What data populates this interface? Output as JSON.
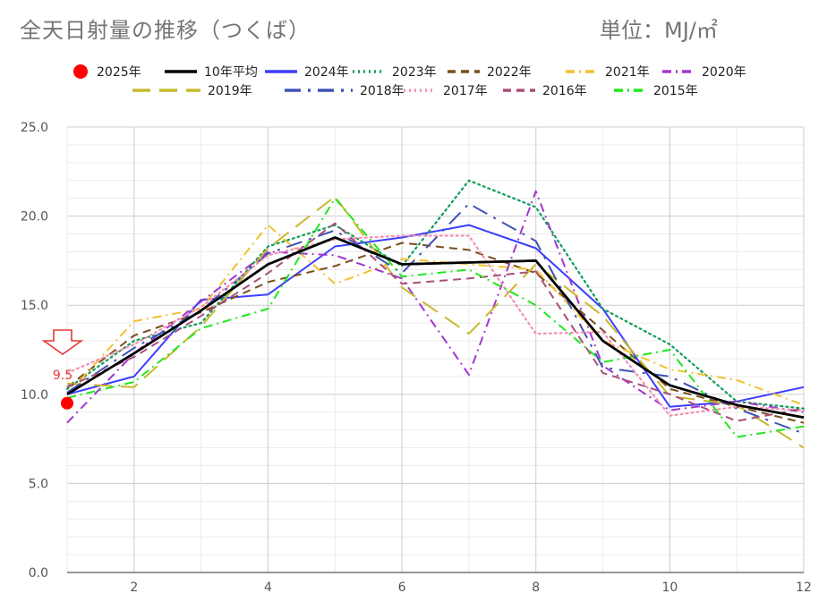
{
  "header": {
    "title": "全天日射量の推移（つくば）",
    "unit": "単位：MJ/㎡"
  },
  "chart_data": {
    "type": "line",
    "title": "全天日射量の推移（つくば）",
    "xlabel": "",
    "ylabel": "",
    "xlim": [
      1,
      12
    ],
    "ylim": [
      0,
      25
    ],
    "x_ticks": [
      2,
      4,
      6,
      8,
      10,
      12
    ],
    "y_ticks": [
      "0.0",
      "5.0",
      "10.0",
      "15.0",
      "20.0",
      "25.0"
    ],
    "grid": true,
    "legend_position": "top",
    "annotation": {
      "text": "9.5",
      "x": 1,
      "y": 9.5,
      "marker": "down-arrow"
    },
    "series": [
      {
        "name": "2025年",
        "color": "#ff0000",
        "style": "marker",
        "x": [
          1
        ],
        "values": [
          9.5
        ]
      },
      {
        "name": "10年平均",
        "color": "#000000",
        "style": "solid-thick",
        "x": [
          1,
          2,
          3,
          4,
          5,
          6,
          7,
          8,
          9,
          10,
          11,
          12
        ],
        "values": [
          10.0,
          12.3,
          14.7,
          17.3,
          18.8,
          17.3,
          17.4,
          17.5,
          13.0,
          10.5,
          9.4,
          8.7
        ]
      },
      {
        "name": "2024年",
        "color": "#3d3dff",
        "style": "solid",
        "x": [
          1,
          2,
          3,
          4,
          5,
          6,
          7,
          8,
          9,
          10,
          11,
          12
        ],
        "values": [
          10.0,
          11.0,
          15.3,
          15.6,
          18.3,
          18.8,
          19.5,
          18.2,
          14.8,
          9.3,
          9.6,
          10.4
        ]
      },
      {
        "name": "2023年",
        "color": "#0f9d58",
        "style": "dotted",
        "x": [
          1,
          2,
          3,
          4,
          5,
          6,
          7,
          8,
          9,
          10,
          11,
          12
        ],
        "values": [
          10.3,
          13.0,
          14.0,
          18.3,
          19.5,
          17.2,
          22.0,
          20.5,
          14.8,
          12.8,
          9.6,
          9.2
        ]
      },
      {
        "name": "2022年",
        "color": "#7a4e1a",
        "style": "dashed",
        "x": [
          1,
          2,
          3,
          4,
          5,
          6,
          7,
          8,
          9,
          10,
          11,
          12
        ],
        "values": [
          10.4,
          13.3,
          14.6,
          16.3,
          17.2,
          18.5,
          18.1,
          16.8,
          13.6,
          10.3,
          9.3,
          8.4
        ]
      },
      {
        "name": "2021年",
        "color": "#f2c12e",
        "style": "dash-dot",
        "x": [
          1,
          2,
          3,
          4,
          5,
          6,
          7,
          8,
          9,
          10,
          11,
          12
        ],
        "values": [
          10.0,
          14.1,
          14.8,
          19.5,
          16.2,
          17.6,
          17.3,
          17.0,
          13.0,
          11.4,
          10.8,
          9.4
        ]
      },
      {
        "name": "2020年",
        "color": "#a335d0",
        "style": "dash-dot",
        "x": [
          1,
          2,
          3,
          4,
          5,
          6,
          7,
          8,
          9,
          10,
          11,
          12
        ],
        "values": [
          8.4,
          12.3,
          15.2,
          18.0,
          17.8,
          16.5,
          11.1,
          21.4,
          11.6,
          9.1,
          9.6,
          9.0
        ]
      },
      {
        "name": "2019年",
        "color": "#c8b92c",
        "style": "long-dash",
        "x": [
          1,
          2,
          3,
          4,
          5,
          6,
          7,
          8,
          9,
          10,
          11,
          12
        ],
        "values": [
          10.6,
          10.4,
          13.8,
          18.2,
          21.1,
          16.0,
          13.4,
          17.3,
          14.4,
          9.9,
          9.4,
          7.0
        ]
      },
      {
        "name": "2018年",
        "color": "#3f51b5",
        "style": "long-dash-dot",
        "x": [
          1,
          2,
          3,
          4,
          5,
          6,
          7,
          8,
          9,
          10,
          11,
          12
        ],
        "values": [
          10.1,
          12.6,
          14.7,
          17.9,
          19.2,
          16.8,
          20.7,
          18.6,
          11.5,
          11.0,
          9.2,
          7.8
        ]
      },
      {
        "name": "2017年",
        "color": "#f48fb1",
        "style": "dotted",
        "x": [
          1,
          2,
          3,
          4,
          5,
          6,
          7,
          8,
          9,
          10,
          11,
          12
        ],
        "values": [
          11.2,
          12.8,
          14.9,
          17.8,
          18.7,
          18.9,
          18.9,
          13.4,
          13.5,
          8.8,
          9.3,
          9.1
        ]
      },
      {
        "name": "2016年",
        "color": "#a94f7a",
        "style": "dashed",
        "x": [
          1,
          2,
          3,
          4,
          5,
          6,
          7,
          8,
          9,
          10,
          11,
          12
        ],
        "values": [
          10.4,
          12.1,
          14.4,
          16.8,
          19.6,
          16.2,
          16.5,
          16.9,
          11.2,
          10.0,
          8.5,
          9.2
        ]
      },
      {
        "name": "2015年",
        "color": "#1ee81e",
        "style": "dash-dot",
        "x": [
          1,
          2,
          3,
          4,
          5,
          6,
          7,
          8,
          9,
          10,
          11,
          12
        ],
        "values": [
          9.8,
          10.7,
          13.7,
          14.8,
          21.0,
          16.6,
          17.0,
          15.0,
          11.8,
          12.5,
          7.6,
          8.2
        ]
      }
    ]
  }
}
